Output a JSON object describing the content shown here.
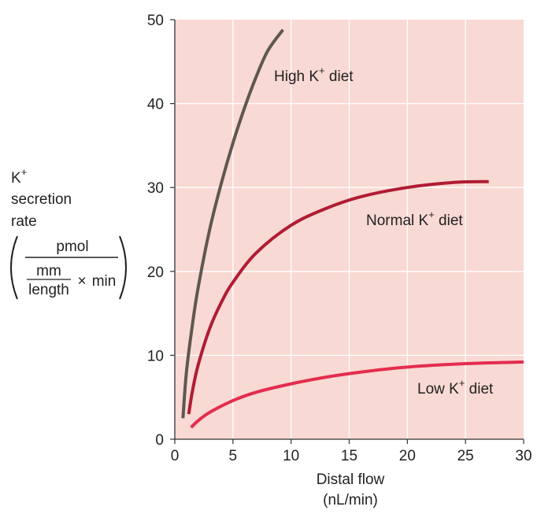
{
  "chart_data": {
    "type": "line",
    "xlabel": "Distal flow",
    "xunit": "(nL/min)",
    "ylabel_lines": [
      "K",
      "secretion",
      "rate"
    ],
    "ylabel_sup": "+",
    "yunit_numerator": "pmol",
    "yunit_denominator_mm": "mm",
    "yunit_denominator_length": "length",
    "yunit_denominator_times": "×",
    "yunit_denominator_min": "min",
    "xlim": [
      0,
      30
    ],
    "ylim": [
      0,
      50
    ],
    "x_ticks": [
      "0",
      "5",
      "10",
      "15",
      "20",
      "25",
      "30"
    ],
    "y_ticks": [
      "0",
      "10",
      "20",
      "30",
      "40",
      "50"
    ],
    "grid": true,
    "background": "#f9d9d3",
    "grid_color": "#ffffff",
    "series": [
      {
        "name": "High K",
        "label_sup": "+",
        "label_suffix": " diet",
        "color": "#5e5850",
        "x": [
          0.7,
          1.0,
          1.5,
          2.0,
          3.0,
          4.0,
          5.0,
          6.0,
          7.0,
          8.0,
          9.3
        ],
        "y": [
          2.5,
          8.0,
          13.5,
          18.0,
          25.0,
          30.5,
          35.3,
          39.5,
          43.2,
          46.3,
          48.8
        ]
      },
      {
        "name": "Normal K",
        "label_sup": "+",
        "label_suffix": " diet",
        "color": "#b01c33",
        "x": [
          1.2,
          1.5,
          2.0,
          3.0,
          4.0,
          5.0,
          7.0,
          10.0,
          13.0,
          16.0,
          20.0,
          24.0,
          27.0
        ],
        "y": [
          3.0,
          5.6,
          8.8,
          13.2,
          16.3,
          18.7,
          22.2,
          25.5,
          27.5,
          28.9,
          30.0,
          30.6,
          30.7
        ]
      },
      {
        "name": "Low K",
        "label_sup": "+",
        "label_suffix": " diet",
        "color": "#e32d4e",
        "x": [
          1.4,
          2.0,
          3.0,
          5.0,
          7.0,
          10.0,
          13.0,
          16.0,
          20.0,
          25.0,
          30.0
        ],
        "y": [
          1.4,
          2.2,
          3.2,
          4.6,
          5.6,
          6.6,
          7.4,
          8.0,
          8.6,
          9.0,
          9.2
        ]
      }
    ]
  }
}
